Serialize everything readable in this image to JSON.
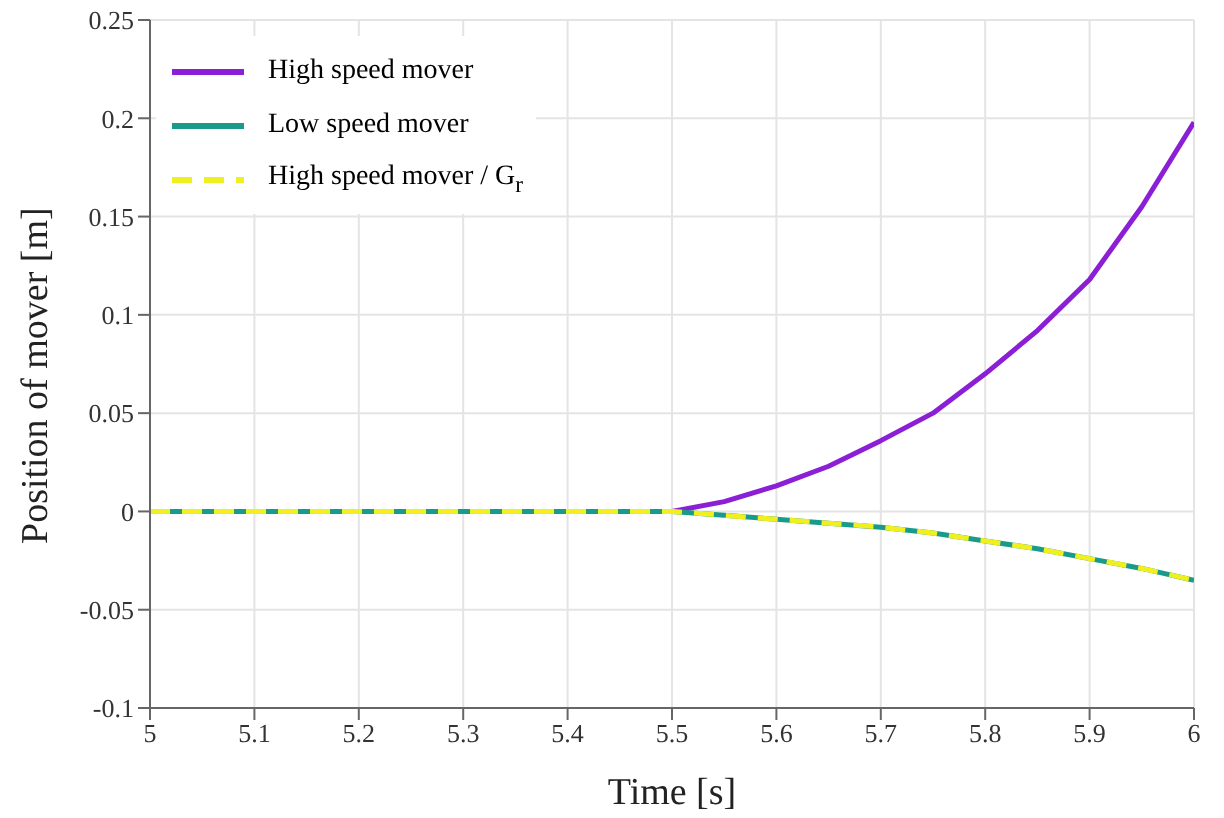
{
  "chart_data": {
    "type": "line",
    "xlabel": "Time [s]",
    "ylabel": "Position of mover [m]",
    "x": [
      5,
      5.1,
      5.2,
      5.3,
      5.4,
      5.5,
      5.55,
      5.6,
      5.65,
      5.7,
      5.75,
      5.8,
      5.85,
      5.9,
      5.95,
      6
    ],
    "series": [
      {
        "name": "High speed mover",
        "color": "#8b1fd6",
        "values": [
          null,
          null,
          null,
          null,
          null,
          0,
          0.005,
          0.013,
          0.023,
          0.036,
          0.05,
          0.07,
          0.092,
          0.118,
          0.155,
          0.198
        ]
      },
      {
        "name": "Low speed mover",
        "color": "#1a9a8a",
        "values": [
          0,
          0,
          0,
          0,
          0,
          0,
          -0.002,
          -0.004,
          -0.006,
          -0.008,
          -0.011,
          -0.015,
          -0.019,
          -0.024,
          -0.029,
          -0.035
        ]
      },
      {
        "name": "High speed mover / G$_{r}$",
        "color": "#f0f020",
        "line_style": "dashed",
        "values": [
          0,
          0,
          0,
          0,
          0,
          0,
          -0.002,
          -0.004,
          -0.006,
          -0.008,
          -0.011,
          -0.015,
          -0.019,
          -0.024,
          -0.029,
          -0.035
        ]
      }
    ],
    "xlim": [
      5,
      6
    ],
    "xticks": [
      5,
      5.1,
      5.2,
      5.3,
      5.4,
      5.5,
      5.6,
      5.7,
      5.8,
      5.9,
      6
    ],
    "ylim": [
      -0.1,
      0.25
    ],
    "yticks": [
      -0.1,
      -0.05,
      0,
      0.05,
      0.1,
      0.15,
      0.2,
      0.25
    ],
    "grid": true,
    "legend": "top left",
    "marker": "none"
  }
}
